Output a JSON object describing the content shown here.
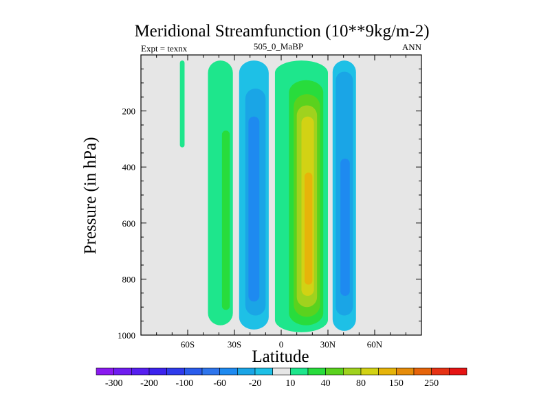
{
  "chart_data": {
    "type": "heatmap",
    "title": "Meridional Streamfunction (10**9kg/m-2)",
    "left_label": "Expt = texnx",
    "center_label": "505_0_MaBP",
    "right_label": "ANN",
    "xlabel": "Latitude",
    "ylabel": "Pressure (in hPa)",
    "xlim": [
      -90,
      90
    ],
    "ylim": [
      1000,
      0
    ],
    "x_ticks": [
      {
        "value": -60,
        "label": "60S"
      },
      {
        "value": -30,
        "label": "30S"
      },
      {
        "value": 0,
        "label": "0"
      },
      {
        "value": 30,
        "label": "30N"
      },
      {
        "value": 60,
        "label": "60N"
      }
    ],
    "y_ticks": [
      {
        "value": 200,
        "label": "200"
      },
      {
        "value": 400,
        "label": "400"
      },
      {
        "value": 600,
        "label": "600"
      },
      {
        "value": 800,
        "label": "800"
      },
      {
        "value": 1000,
        "label": "1000"
      }
    ],
    "background_color": "#e6e6e6",
    "colorbar": {
      "levels": [
        -300,
        -250,
        -200,
        -150,
        -100,
        -80,
        -60,
        -40,
        -20,
        -10,
        10,
        20,
        40,
        60,
        80,
        100,
        150,
        200,
        250,
        300
      ],
      "labels": [
        "-300",
        "-200",
        "-100",
        "-60",
        "-20",
        "10",
        "40",
        "80",
        "150",
        "250"
      ],
      "label_after_boundary": [
        0,
        2,
        4,
        6,
        8,
        10,
        12,
        14,
        16,
        18
      ],
      "colors": [
        "#8a19f0",
        "#6f1cf0",
        "#561ff0",
        "#3c23ee",
        "#2f3bec",
        "#2a5cec",
        "#2e75ec",
        "#1e8af0",
        "#1aa5e6",
        "#1ec0e6",
        "#e6e6e6",
        "#1ee68c",
        "#28dc3c",
        "#5ad21e",
        "#a0d21e",
        "#d2d214",
        "#e6b40a",
        "#e68c0a",
        "#e6640a",
        "#e63214",
        "#e61414"
      ]
    },
    "cells": [
      {
        "name": "south-polar-positive-cell",
        "color_index": 11,
        "lat_extent": [
          -47,
          -31
        ],
        "p_extent": [
          20,
          965
        ]
      },
      {
        "name": "south-polar-positive-core",
        "color_index": 12,
        "lat_extent": [
          -38,
          -33
        ],
        "p_extent": [
          270,
          910
        ]
      },
      {
        "name": "polar-thin-positive-band",
        "color_index": 11,
        "lat_extent": [
          -65,
          -62
        ],
        "p_extent": [
          20,
          330
        ]
      },
      {
        "name": "southern-ferrel-negative-cell",
        "color_index": 9,
        "lat_extent": [
          -27,
          -8
        ],
        "p_extent": [
          20,
          980
        ]
      },
      {
        "name": "southern-ferrel-negative-mid",
        "color_index": 8,
        "lat_extent": [
          -23,
          -10
        ],
        "p_extent": [
          120,
          930
        ]
      },
      {
        "name": "southern-ferrel-negative-core",
        "color_index": 7,
        "lat_extent": [
          -21,
          -14
        ],
        "p_extent": [
          220,
          880
        ]
      },
      {
        "name": "hadley-positive-cell",
        "color_index": 11,
        "lat_extent": [
          -4,
          30
        ],
        "p_extent": [
          20,
          990
        ]
      },
      {
        "name": "hadley-level-20",
        "color_index": 12,
        "lat_extent": [
          5,
          27
        ],
        "p_extent": [
          90,
          965
        ]
      },
      {
        "name": "hadley-level-40",
        "color_index": 13,
        "lat_extent": [
          8,
          25
        ],
        "p_extent": [
          140,
          935
        ]
      },
      {
        "name": "hadley-level-60",
        "color_index": 14,
        "lat_extent": [
          10,
          23
        ],
        "p_extent": [
          180,
          900
        ]
      },
      {
        "name": "hadley-level-80",
        "color_index": 15,
        "lat_extent": [
          13,
          21
        ],
        "p_extent": [
          220,
          860
        ]
      },
      {
        "name": "hadley-level-100",
        "color_index": 16,
        "lat_extent": [
          15,
          20
        ],
        "p_extent": [
          420,
          820
        ]
      },
      {
        "name": "northern-ferrel-negative-cell",
        "color_index": 9,
        "lat_extent": [
          33,
          48
        ],
        "p_extent": [
          20,
          985
        ]
      },
      {
        "name": "northern-ferrel-negative-mid",
        "color_index": 8,
        "lat_extent": [
          35,
          46
        ],
        "p_extent": [
          60,
          930
        ]
      },
      {
        "name": "northern-ferrel-negative-core",
        "color_index": 7,
        "lat_extent": [
          38,
          44
        ],
        "p_extent": [
          370,
          860
        ]
      }
    ]
  }
}
